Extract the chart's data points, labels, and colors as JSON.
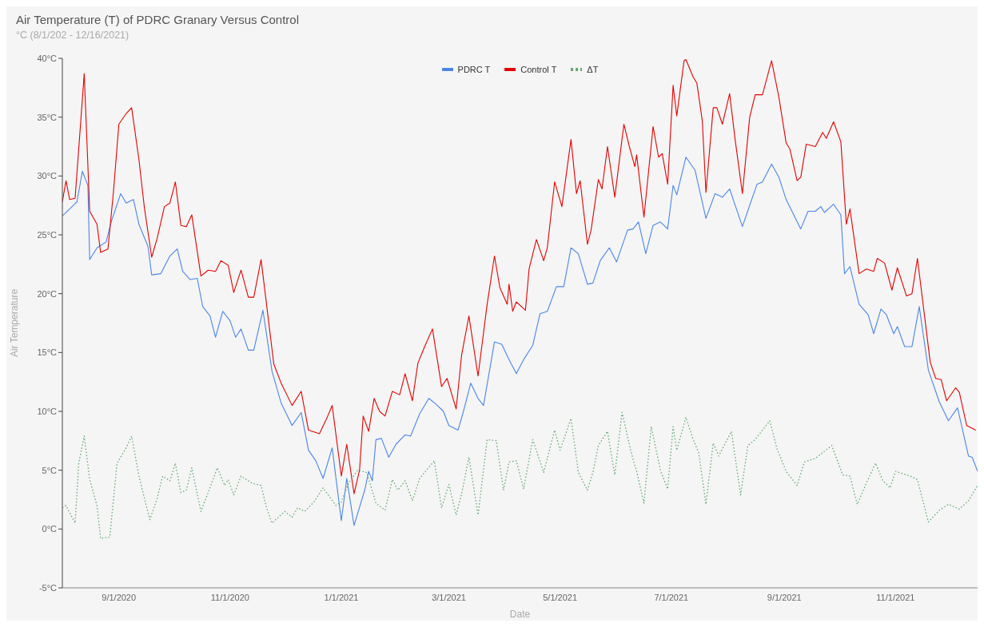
{
  "chart_data": {
    "type": "line",
    "title": "Air Temperature (T) of PDRC Granary Versus Control",
    "subtitle": "°C (8/1/202 - 12/16/2021)",
    "xlabel": "Date",
    "ylabel": "Air Temperature",
    "legend": "top",
    "xlim": [
      "2020-08-01",
      "2021-12-16"
    ],
    "xticks": [
      {
        "value": "2020-09-01",
        "label": "9/1/2020"
      },
      {
        "value": "2020-11-01",
        "label": "11/1/2020"
      },
      {
        "value": "2021-01-01",
        "label": "1/1/2021"
      },
      {
        "value": "2021-03-01",
        "label": "3/1/2021"
      },
      {
        "value": "2021-05-01",
        "label": "5/1/2021"
      },
      {
        "value": "2021-07-01",
        "label": "7/1/2021"
      },
      {
        "value": "2021-09-01",
        "label": "9/1/2021"
      },
      {
        "value": "2021-11-01",
        "label": "11/1/2021"
      }
    ],
    "ylim": [
      -5,
      40
    ],
    "yticks": [
      {
        "value": -5,
        "label": "-5°C"
      },
      {
        "value": 0,
        "label": "0°C"
      },
      {
        "value": 5,
        "label": "5°C"
      },
      {
        "value": 10,
        "label": "10°C"
      },
      {
        "value": 15,
        "label": "15°C"
      },
      {
        "value": 20,
        "label": "20°C"
      },
      {
        "value": 25,
        "label": "25°C"
      },
      {
        "value": 30,
        "label": "30°C"
      },
      {
        "value": 35,
        "label": "35°C"
      },
      {
        "value": 40,
        "label": "40°C"
      }
    ],
    "series": [
      {
        "name": "PDRC T",
        "color": "#4a86e8",
        "line_style": "solid",
        "x": [
          "2020-08-01",
          "2020-08-05",
          "2020-08-09",
          "2020-08-12",
          "2020-08-15",
          "2020-08-16",
          "2020-08-20",
          "2020-08-25",
          "2020-08-28",
          "2020-09-02",
          "2020-09-05",
          "2020-09-09",
          "2020-09-12",
          "2020-09-17",
          "2020-09-19",
          "2020-09-24",
          "2020-09-29",
          "2020-10-03",
          "2020-10-06",
          "2020-10-10",
          "2020-10-14",
          "2020-10-17",
          "2020-10-21",
          "2020-10-24",
          "2020-10-28",
          "2020-11-01",
          "2020-11-04",
          "2020-11-07",
          "2020-11-11",
          "2020-11-14",
          "2020-11-19",
          "2020-11-24",
          "2020-11-29",
          "2020-12-05",
          "2020-12-10",
          "2020-12-14",
          "2020-12-18",
          "2020-12-22",
          "2020-12-27",
          "2021-01-01",
          "2021-01-04",
          "2021-01-08",
          "2021-01-14",
          "2021-01-16",
          "2021-01-18",
          "2021-01-20",
          "2021-01-23",
          "2021-01-27",
          "2021-01-31",
          "2021-02-05",
          "2021-02-08",
          "2021-02-13",
          "2021-02-18",
          "2021-02-22",
          "2021-02-26",
          "2021-03-01",
          "2021-03-06",
          "2021-03-09",
          "2021-03-13",
          "2021-03-17",
          "2021-03-20",
          "2021-03-26",
          "2021-03-30",
          "2021-04-03",
          "2021-04-07",
          "2021-04-11",
          "2021-04-16",
          "2021-04-20",
          "2021-04-24",
          "2021-04-29",
          "2021-05-03",
          "2021-05-07",
          "2021-05-11",
          "2021-05-16",
          "2021-05-19",
          "2021-05-23",
          "2021-05-28",
          "2021-06-01",
          "2021-06-07",
          "2021-06-10",
          "2021-06-13",
          "2021-06-17",
          "2021-06-21",
          "2021-06-25",
          "2021-06-29",
          "2021-07-02",
          "2021-07-04",
          "2021-07-09",
          "2021-07-14",
          "2021-07-20",
          "2021-07-25",
          "2021-07-29",
          "2021-08-02",
          "2021-08-09",
          "2021-08-17",
          "2021-08-20",
          "2021-08-25",
          "2021-08-29",
          "2021-09-02",
          "2021-09-10",
          "2021-09-14",
          "2021-09-18",
          "2021-09-21",
          "2021-09-23",
          "2021-09-28",
          "2021-10-02",
          "2021-10-04",
          "2021-10-07",
          "2021-10-12",
          "2021-10-17",
          "2021-10-20",
          "2021-10-24",
          "2021-10-27",
          "2021-10-31",
          "2021-11-02",
          "2021-11-06",
          "2021-11-10",
          "2021-11-14",
          "2021-11-19",
          "2021-11-25",
          "2021-11-30",
          "2021-12-05",
          "2021-12-11",
          "2021-12-13",
          "2021-12-16"
        ],
        "values": [
          26.6,
          27.2,
          27.8,
          30.4,
          29.2,
          22.9,
          23.9,
          24.4,
          26.2,
          28.5,
          27.7,
          28.0,
          25.9,
          24.0,
          21.6,
          21.7,
          23.2,
          23.8,
          21.9,
          21.2,
          21.3,
          18.9,
          18.1,
          16.3,
          18.5,
          17.7,
          16.3,
          17.0,
          15.2,
          15.2,
          18.6,
          13.4,
          10.7,
          8.8,
          9.9,
          6.7,
          5.8,
          4.3,
          6.9,
          0.7,
          4.3,
          0.3,
          3.4,
          4.9,
          4.1,
          7.6,
          7.7,
          6.1,
          7.2,
          8.0,
          7.9,
          9.8,
          11.1,
          10.6,
          10.0,
          8.8,
          8.4,
          10.0,
          12.4,
          11.1,
          10.5,
          15.9,
          15.7,
          14.4,
          13.2,
          14.4,
          15.6,
          18.3,
          18.5,
          20.6,
          20.6,
          23.9,
          23.4,
          20.8,
          20.9,
          22.8,
          23.9,
          22.7,
          25.4,
          25.5,
          26.1,
          23.4,
          25.8,
          26.1,
          25.5,
          29.2,
          28.4,
          31.6,
          30.5,
          26.4,
          28.5,
          28.2,
          28.9,
          25.7,
          29.3,
          29.5,
          31.0,
          29.9,
          28.0,
          25.5,
          27.0,
          27.0,
          27.4,
          26.9,
          27.6,
          26.7,
          21.7,
          22.3,
          19.1,
          18.2,
          16.6,
          18.7,
          18.2,
          16.6,
          17.2,
          15.5,
          15.5,
          18.9,
          13.5,
          10.8,
          9.2,
          10.3,
          6.2,
          6.1,
          4.9
        ]
      },
      {
        "name": "Control T",
        "color": "#e50000",
        "line_style": "solid",
        "x": [
          "2020-08-01",
          "2020-08-03",
          "2020-08-05",
          "2020-08-08",
          "2020-08-13",
          "2020-08-16",
          "2020-08-20",
          "2020-08-22",
          "2020-08-26",
          "2020-08-29",
          "2020-09-01",
          "2020-09-05",
          "2020-09-08",
          "2020-09-12",
          "2020-09-15",
          "2020-09-19",
          "2020-09-22",
          "2020-09-26",
          "2020-09-29",
          "2020-10-02",
          "2020-10-05",
          "2020-10-08",
          "2020-10-11",
          "2020-10-16",
          "2020-10-20",
          "2020-10-24",
          "2020-10-27",
          "2020-10-31",
          "2020-11-03",
          "2020-11-07",
          "2020-11-11",
          "2020-11-14",
          "2020-11-18",
          "2020-11-25",
          "2020-11-29",
          "2020-12-05",
          "2020-12-10",
          "2020-12-14",
          "2020-12-20",
          "2020-12-24",
          "2020-12-27",
          "2021-01-01",
          "2021-01-04",
          "2021-01-08",
          "2021-01-11",
          "2021-01-13",
          "2021-01-16",
          "2021-01-19",
          "2021-01-22",
          "2021-01-25",
          "2021-01-29",
          "2021-02-02",
          "2021-02-05",
          "2021-02-09",
          "2021-02-12",
          "2021-02-16",
          "2021-02-20",
          "2021-02-25",
          "2021-02-28",
          "2021-03-05",
          "2021-03-08",
          "2021-03-12",
          "2021-03-17",
          "2021-03-22",
          "2021-03-26",
          "2021-03-29",
          "2021-04-02",
          "2021-04-03",
          "2021-04-05",
          "2021-04-07",
          "2021-04-12",
          "2021-04-14",
          "2021-04-18",
          "2021-04-22",
          "2021-04-24",
          "2021-04-28",
          "2021-05-02",
          "2021-05-07",
          "2021-05-10",
          "2021-05-12",
          "2021-05-16",
          "2021-05-18",
          "2021-05-22",
          "2021-05-24",
          "2021-05-27",
          "2021-05-31",
          "2021-06-05",
          "2021-06-08",
          "2021-06-11",
          "2021-06-12",
          "2021-06-16",
          "2021-06-21",
          "2021-06-24",
          "2021-06-26",
          "2021-06-29",
          "2021-07-02",
          "2021-07-04",
          "2021-07-08",
          "2021-07-09",
          "2021-07-13",
          "2021-07-15",
          "2021-07-18",
          "2021-07-20",
          "2021-07-24",
          "2021-07-26",
          "2021-07-29",
          "2021-08-02",
          "2021-08-05",
          "2021-08-09",
          "2021-08-13",
          "2021-08-16",
          "2021-08-20",
          "2021-08-25",
          "2021-08-29",
          "2021-09-02",
          "2021-09-04",
          "2021-09-08",
          "2021-09-10",
          "2021-09-13",
          "2021-09-18",
          "2021-09-22",
          "2021-09-24",
          "2021-09-28",
          "2021-10-02",
          "2021-10-05",
          "2021-10-07",
          "2021-10-12",
          "2021-10-16",
          "2021-10-20",
          "2021-10-22",
          "2021-10-26",
          "2021-10-30",
          "2021-11-02",
          "2021-11-07",
          "2021-11-10",
          "2021-11-13",
          "2021-11-20",
          "2021-11-23",
          "2021-11-26",
          "2021-11-29",
          "2021-12-04",
          "2021-12-06",
          "2021-12-10",
          "2021-12-15"
        ],
        "values": [
          27.8,
          29.6,
          28.0,
          28.1,
          38.7,
          27.0,
          25.9,
          23.5,
          23.8,
          28.6,
          34.4,
          35.3,
          35.8,
          31.4,
          27.3,
          23.1,
          24.7,
          27.4,
          27.7,
          29.5,
          25.8,
          25.7,
          26.7,
          21.5,
          22.0,
          21.9,
          22.8,
          22.4,
          20.1,
          22.0,
          19.7,
          19.7,
          22.9,
          14.0,
          12.4,
          10.5,
          11.7,
          8.4,
          8.1,
          9.4,
          10.5,
          4.5,
          7.2,
          3.0,
          5.0,
          9.6,
          8.3,
          11.1,
          10.0,
          9.6,
          11.7,
          11.4,
          13.2,
          10.9,
          14.1,
          15.6,
          17.0,
          12.1,
          12.8,
          10.2,
          14.8,
          18.1,
          13.0,
          19.1,
          23.2,
          20.5,
          19.1,
          20.8,
          18.5,
          19.3,
          18.6,
          22.1,
          24.6,
          22.8,
          23.9,
          29.5,
          27.4,
          33.1,
          28.5,
          29.6,
          24.2,
          25.4,
          29.7,
          28.9,
          32.5,
          28.2,
          34.4,
          32.5,
          30.8,
          31.8,
          26.5,
          34.2,
          31.6,
          31.9,
          29.3,
          37.7,
          35.1,
          39.8,
          39.9,
          38.4,
          37.9,
          34.7,
          28.6,
          35.8,
          35.8,
          34.4,
          37.0,
          33.1,
          28.5,
          35.0,
          36.9,
          36.9,
          39.8,
          36.7,
          32.8,
          32.3,
          29.6,
          29.9,
          32.7,
          32.5,
          33.7,
          33.2,
          34.6,
          32.9,
          25.9,
          27.2,
          21.7,
          22.1,
          21.9,
          23.0,
          22.6,
          20.3,
          22.2,
          19.8,
          20.0,
          23.0,
          14.2,
          12.8,
          12.7,
          10.9,
          12.0,
          11.6,
          8.8,
          8.4
        ]
      },
      {
        "name": "ΔT",
        "color": "#5fa86e",
        "line_style": "dotted",
        "x": [
          "2020-08-01",
          "2020-08-03",
          "2020-08-08",
          "2020-08-10",
          "2020-08-13",
          "2020-08-16",
          "2020-08-20",
          "2020-08-22",
          "2020-08-27",
          "2020-08-31",
          "2020-09-05",
          "2020-09-08",
          "2020-09-12",
          "2020-09-16",
          "2020-09-18",
          "2020-09-22",
          "2020-09-25",
          "2020-09-29",
          "2020-10-02",
          "2020-10-05",
          "2020-10-08",
          "2020-10-11",
          "2020-10-16",
          "2020-10-20",
          "2020-10-25",
          "2020-10-29",
          "2020-10-31",
          "2020-11-03",
          "2020-11-07",
          "2020-11-13",
          "2020-11-18",
          "2020-11-21",
          "2020-11-24",
          "2020-12-01",
          "2020-12-05",
          "2020-12-08",
          "2020-12-12",
          "2020-12-17",
          "2020-12-22",
          "2020-12-29",
          "2021-01-01",
          "2021-01-05",
          "2021-01-10",
          "2021-01-15",
          "2021-01-20",
          "2021-01-25",
          "2021-01-29",
          "2021-02-01",
          "2021-02-05",
          "2021-02-09",
          "2021-02-13",
          "2021-02-21",
          "2021-02-25",
          "2021-03-01",
          "2021-03-05",
          "2021-03-08",
          "2021-03-12",
          "2021-03-17",
          "2021-03-22",
          "2021-03-27",
          "2021-03-31",
          "2021-04-03",
          "2021-04-07",
          "2021-04-11",
          "2021-04-16",
          "2021-04-22",
          "2021-04-28",
          "2021-05-01",
          "2021-05-07",
          "2021-05-11",
          "2021-05-16",
          "2021-05-19",
          "2021-05-22",
          "2021-05-27",
          "2021-05-31",
          "2021-06-04",
          "2021-06-09",
          "2021-06-12",
          "2021-06-16",
          "2021-06-20",
          "2021-06-25",
          "2021-06-29",
          "2021-07-02",
          "2021-07-04",
          "2021-07-09",
          "2021-07-13",
          "2021-07-16",
          "2021-07-20",
          "2021-07-24",
          "2021-07-27",
          "2021-08-03",
          "2021-08-08",
          "2021-08-12",
          "2021-08-16",
          "2021-08-24",
          "2021-08-28",
          "2021-09-02",
          "2021-09-08",
          "2021-09-12",
          "2021-09-18",
          "2021-09-27",
          "2021-10-03",
          "2021-10-07",
          "2021-10-11",
          "2021-10-16",
          "2021-10-21",
          "2021-10-25",
          "2021-10-29",
          "2021-11-01",
          "2021-11-09",
          "2021-11-13",
          "2021-11-19",
          "2021-11-25",
          "2021-11-30",
          "2021-12-06",
          "2021-12-11",
          "2021-12-16"
        ],
        "values": [
          1.8,
          2.0,
          0.5,
          5.6,
          7.9,
          4.2,
          2.0,
          -0.8,
          -0.7,
          5.6,
          6.9,
          7.9,
          4.5,
          2.0,
          0.8,
          2.6,
          4.5,
          4.1,
          5.6,
          3.1,
          3.3,
          5.2,
          1.5,
          3.1,
          5.2,
          3.7,
          4.2,
          2.9,
          4.5,
          3.9,
          3.7,
          1.8,
          0.5,
          1.5,
          1.0,
          1.8,
          1.5,
          2.3,
          3.5,
          2.0,
          2.3,
          3.9,
          5.0,
          4.8,
          2.2,
          1.6,
          4.2,
          3.3,
          4.1,
          2.4,
          4.3,
          5.8,
          1.8,
          3.8,
          1.2,
          3.0,
          6.1,
          1.2,
          7.6,
          7.5,
          3.3,
          5.7,
          5.8,
          3.4,
          7.6,
          4.8,
          8.4,
          6.7,
          9.4,
          4.8,
          3.3,
          4.8,
          7.1,
          8.3,
          4.6,
          9.9,
          6.5,
          4.9,
          2.2,
          8.7,
          5.0,
          3.4,
          8.7,
          6.7,
          9.5,
          7.6,
          6.5,
          2.1,
          7.3,
          6.2,
          8.3,
          2.9,
          7.1,
          7.6,
          9.2,
          6.8,
          4.9,
          3.7,
          5.7,
          6.0,
          7.1,
          4.6,
          4.5,
          2.1,
          3.9,
          5.6,
          4.1,
          3.5,
          4.9,
          4.5,
          4.2,
          0.6,
          1.6,
          2.1,
          1.7,
          2.4,
          3.7
        ]
      }
    ]
  }
}
